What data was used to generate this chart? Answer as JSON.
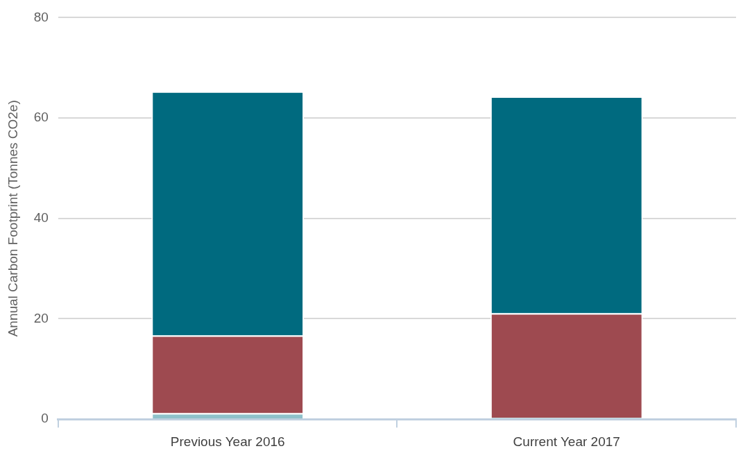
{
  "chart_data": {
    "type": "bar",
    "stacked": true,
    "ylabel": "Annual Carbon Footprint (Tonnes CO2e)",
    "categories": [
      "Previous Year 2016",
      "Current Year 2017"
    ],
    "series": [
      {
        "color": "#8fc1ca",
        "values": [
          1.2,
          0.3
        ]
      },
      {
        "color": "#9e4a50",
        "values": [
          15.5,
          20.8
        ]
      },
      {
        "color": "#006a7f",
        "values": [
          48.6,
          43.2
        ]
      }
    ],
    "ylim": [
      0,
      80
    ],
    "yticks": [
      0,
      20,
      40,
      60,
      80
    ],
    "grid": "y",
    "legend": false
  }
}
